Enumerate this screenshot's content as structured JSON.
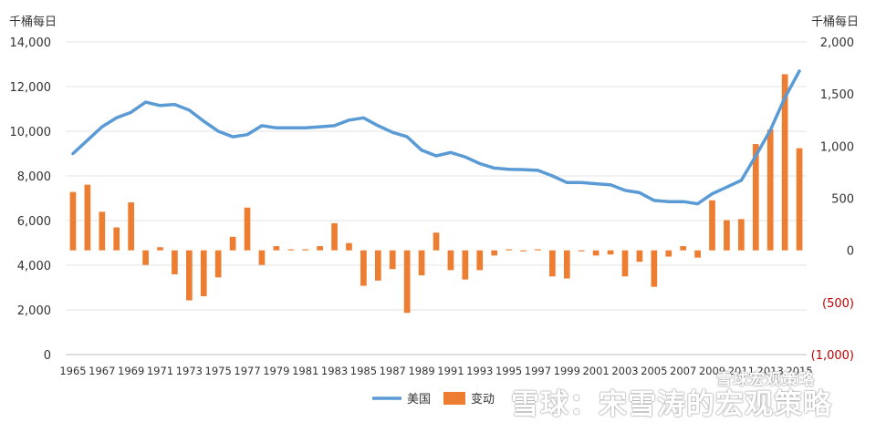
{
  "chart_data": {
    "type": "bar+line",
    "units_left": "千桶每日",
    "units_right": "千桶每日",
    "left_ticks": [
      "0",
      "2,000",
      "4,000",
      "6,000",
      "8,000",
      "10,000",
      "12,000",
      "14,000"
    ],
    "right_ticks": [
      "(1,000)",
      "(500)",
      "0",
      "500",
      "1,000",
      "1,500",
      "2,000"
    ],
    "left_ylim": [
      0,
      14000
    ],
    "right_ylim": [
      -1000,
      2000
    ],
    "x_ticks": [
      "1965",
      "1967",
      "1969",
      "1971",
      "1973",
      "1975",
      "1977",
      "1979",
      "1981",
      "1983",
      "1985",
      "1987",
      "1989",
      "1991",
      "1993",
      "1995",
      "1997",
      "1999",
      "2001",
      "2003",
      "2005",
      "2007",
      "2009",
      "2011",
      "2013",
      "2015"
    ],
    "years": [
      1965,
      1966,
      1967,
      1968,
      1969,
      1970,
      1971,
      1972,
      1973,
      1974,
      1975,
      1976,
      1977,
      1978,
      1979,
      1980,
      1981,
      1982,
      1983,
      1984,
      1985,
      1986,
      1987,
      1988,
      1989,
      1990,
      1991,
      1992,
      1993,
      1994,
      1995,
      1996,
      1997,
      1998,
      1999,
      2000,
      2001,
      2002,
      2003,
      2004,
      2005,
      2006,
      2007,
      2008,
      2009,
      2010,
      2011,
      2012,
      2013,
      2014,
      2015
    ],
    "series": [
      {
        "name": "美国",
        "type": "line",
        "axis": "left",
        "color": "#5b9bd5",
        "values": [
          9000,
          9600,
          10200,
          10600,
          10850,
          11300,
          11150,
          11200,
          10950,
          10450,
          10000,
          9750,
          9850,
          10250,
          10150,
          10150,
          10150,
          10200,
          10250,
          10500,
          10600,
          10250,
          9950,
          9750,
          9150,
          8900,
          9050,
          8850,
          8550,
          8350,
          8300,
          8280,
          8250,
          8000,
          7700,
          7700,
          7650,
          7600,
          7350,
          7250,
          6900,
          6850,
          6850,
          6750,
          7200,
          7500,
          7800,
          8900,
          10050,
          11500,
          12700
        ]
      },
      {
        "name": "变动",
        "type": "bar",
        "axis": "right",
        "color": "#ed7d31",
        "values": [
          560,
          630,
          370,
          220,
          460,
          -140,
          30,
          -230,
          -480,
          -440,
          -260,
          130,
          410,
          -140,
          40,
          10,
          10,
          40,
          260,
          70,
          -340,
          -290,
          -180,
          -600,
          -240,
          170,
          -190,
          -280,
          -190,
          -50,
          10,
          -10,
          10,
          -250,
          -270,
          -10,
          -50,
          -40,
          -250,
          -110,
          -350,
          -60,
          40,
          -70,
          480,
          290,
          300,
          1020,
          1160,
          1690,
          980
        ]
      }
    ],
    "legend": [
      "美国",
      "变动"
    ],
    "legend_position": "bottom",
    "grid": "horizontal",
    "title": ""
  },
  "watermark": {
    "line1": "雪球宏观策略",
    "line2": "雪球：宋雪涛的宏观策略"
  }
}
